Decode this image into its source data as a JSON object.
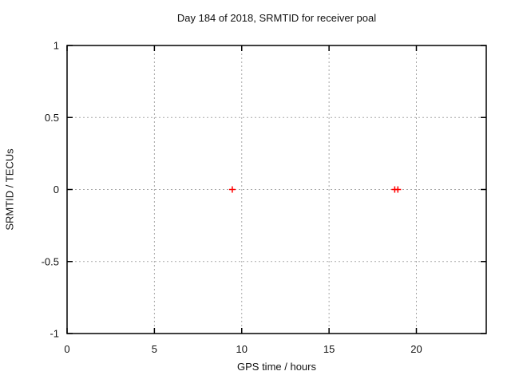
{
  "chart_data": {
    "type": "scatter",
    "title": "Day 184 of 2018, SRMTID for receiver poal",
    "xlabel": "GPS time / hours",
    "ylabel": "SRMTID / TECUs",
    "xlim": [
      0,
      24
    ],
    "ylim": [
      -1,
      1
    ],
    "xticks": [
      0,
      5,
      10,
      15,
      20
    ],
    "xtick_labels": [
      "0",
      "5",
      "10",
      "15",
      "20"
    ],
    "yticks": [
      -1,
      -0.5,
      0,
      0.5,
      1
    ],
    "ytick_labels": [
      "-1",
      "-0.5",
      "0",
      "0.5",
      "1"
    ],
    "grid": true,
    "legend_position": "none",
    "series": [
      {
        "name": "SRMTID",
        "marker": "plus",
        "color": "#ff0000",
        "points": [
          [
            9.46,
            0
          ],
          [
            18.76,
            0
          ],
          [
            18.94,
            0
          ]
        ]
      }
    ],
    "colors": {
      "background": "#ffffff",
      "border": "#000000",
      "grid": "#a8a8a8",
      "text": "#111111",
      "marker": "#ff0000"
    }
  }
}
